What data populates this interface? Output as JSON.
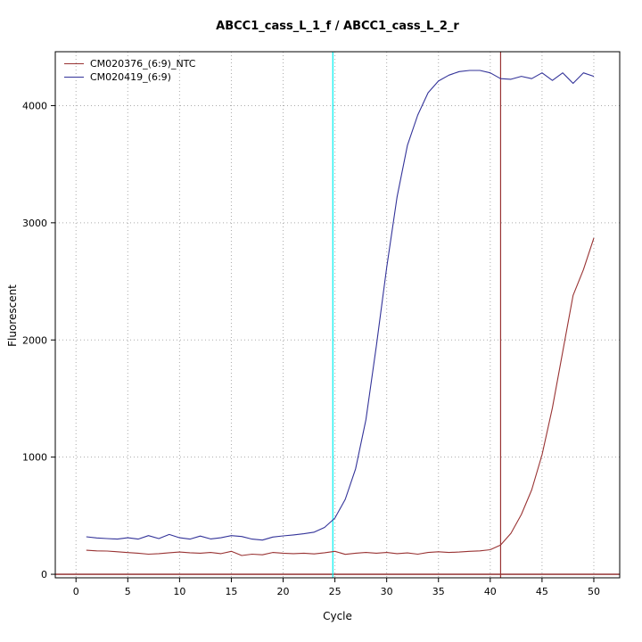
{
  "title": "ABCC1_cass_L_1_f / ABCC1_cass_L_2_r",
  "chart_data": {
    "type": "line",
    "title": "ABCC1_cass_L_1_f / ABCC1_cass_L_2_r",
    "xlabel": "Cycle",
    "ylabel": "Fluorescent",
    "xlim": [
      -2,
      52.5
    ],
    "ylim": [
      -30,
      4460
    ],
    "xticks": [
      0,
      5,
      10,
      15,
      20,
      25,
      30,
      35,
      40,
      45,
      50
    ],
    "yticks": [
      0,
      1000,
      2000,
      3000,
      4000
    ],
    "grid": "dotted",
    "grid_color": "#aaaaaa",
    "legend_position": "top-left",
    "series": [
      {
        "name": "CM020376_(6:9)_NTC",
        "color": "#993333",
        "x": [
          1,
          2,
          3,
          4,
          5,
          6,
          7,
          8,
          9,
          10,
          11,
          12,
          13,
          14,
          15,
          16,
          17,
          18,
          19,
          20,
          21,
          22,
          23,
          24,
          25,
          26,
          27,
          28,
          29,
          30,
          31,
          32,
          33,
          34,
          35,
          36,
          37,
          38,
          39,
          40,
          41,
          42,
          43,
          44,
          45,
          46,
          47,
          48,
          49,
          50
        ],
        "values": [
          205,
          200,
          198,
          192,
          185,
          180,
          172,
          176,
          184,
          190,
          184,
          180,
          186,
          176,
          196,
          160,
          172,
          166,
          186,
          180,
          176,
          180,
          174,
          184,
          196,
          170,
          180,
          186,
          180,
          186,
          176,
          182,
          172,
          186,
          192,
          186,
          190,
          196,
          200,
          210,
          250,
          350,
          510,
          720,
          1020,
          1420,
          1900,
          2380,
          2600,
          2870
        ]
      },
      {
        "name": "CM020419_(6:9)",
        "color": "#333399",
        "x": [
          1,
          2,
          3,
          4,
          5,
          6,
          7,
          8,
          9,
          10,
          11,
          12,
          13,
          14,
          15,
          16,
          17,
          18,
          19,
          20,
          21,
          22,
          23,
          24,
          25,
          26,
          27,
          28,
          29,
          30,
          31,
          32,
          33,
          34,
          35,
          36,
          37,
          38,
          39,
          40,
          41,
          42,
          43,
          44,
          45,
          46,
          47,
          48,
          49,
          50
        ],
        "values": [
          320,
          310,
          305,
          300,
          312,
          300,
          330,
          305,
          340,
          312,
          300,
          326,
          302,
          312,
          330,
          322,
          300,
          292,
          318,
          328,
          336,
          346,
          360,
          400,
          480,
          640,
          900,
          1320,
          1950,
          2620,
          3220,
          3660,
          3920,
          4110,
          4210,
          4260,
          4290,
          4300,
          4300,
          4280,
          4230,
          4225,
          4250,
          4230,
          4280,
          4215,
          4280,
          4190,
          4280,
          4250
        ]
      }
    ],
    "vlines": [
      {
        "x": 24.8,
        "color": "#00eeee",
        "label": "threshold-cycle-blue"
      },
      {
        "x": 41.0,
        "color": "#993333",
        "label": "threshold-cycle-red"
      }
    ],
    "hlines": [
      {
        "y": 0,
        "color": "#8b2222",
        "label": "baseline"
      }
    ]
  }
}
